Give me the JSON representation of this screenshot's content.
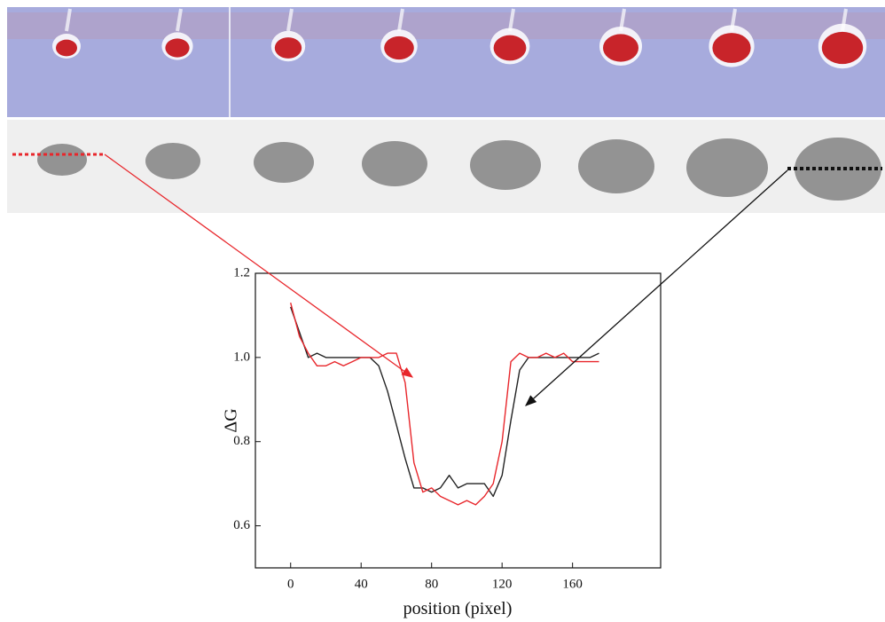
{
  "chart_data": {
    "type": "line",
    "y_label": "ΔG",
    "x_label": "position (pixel)",
    "x": [
      0,
      5,
      10,
      15,
      20,
      25,
      30,
      35,
      40,
      45,
      50,
      55,
      60,
      65,
      70,
      75,
      80,
      85,
      90,
      95,
      100,
      105,
      110,
      115,
      120,
      125,
      130,
      135,
      140,
      145,
      150,
      155,
      160,
      165,
      170,
      175
    ],
    "series": [
      {
        "color": "#222222",
        "values": [
          1.12,
          1.06,
          1.0,
          1.01,
          1.0,
          1.0,
          1.0,
          1.0,
          1.0,
          1.0,
          0.98,
          0.92,
          0.84,
          0.76,
          0.69,
          0.69,
          0.68,
          0.69,
          0.72,
          0.69,
          0.7,
          0.7,
          0.7,
          0.67,
          0.72,
          0.85,
          0.97,
          1.0,
          1.0,
          1.0,
          1.0,
          1.0,
          1.0,
          1.0,
          1.0,
          1.01
        ]
      },
      {
        "color": "#e8262b",
        "values": [
          1.13,
          1.05,
          1.01,
          0.98,
          0.98,
          0.99,
          0.98,
          0.99,
          1.0,
          1.0,
          1.0,
          1.01,
          1.01,
          0.94,
          0.75,
          0.68,
          0.69,
          0.67,
          0.66,
          0.65,
          0.66,
          0.65,
          0.67,
          0.7,
          0.8,
          0.99,
          1.01,
          1.0,
          1.0,
          1.01,
          1.0,
          1.01,
          0.99,
          0.99,
          0.99,
          0.99
        ]
      }
    ],
    "xlim": [
      -20,
      210
    ],
    "ylim": [
      0.5,
      1.2
    ],
    "xticks": [
      0,
      40,
      80,
      120,
      160
    ],
    "yticks": [
      0.6,
      0.8,
      {
        "value": 1,
        "label": "1.0"
      },
      1.2
    ]
  }
}
